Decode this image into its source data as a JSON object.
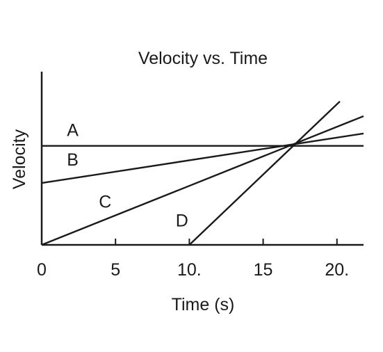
{
  "chart_data": {
    "type": "line",
    "title": "Velocity vs. Time",
    "xlabel": "Time (s)",
    "ylabel": "Velocity",
    "xlim": [
      0,
      21.8
    ],
    "ylim": [
      0,
      7
    ],
    "x_ticks": [
      {
        "value": 0,
        "label": "0"
      },
      {
        "value": 5,
        "label": "5"
      },
      {
        "value": 10,
        "label": "10."
      },
      {
        "value": 15,
        "label": "15"
      },
      {
        "value": 20,
        "label": "20."
      }
    ],
    "grid": false,
    "series": [
      {
        "name": "A",
        "x": [
          0,
          21.8
        ],
        "y": [
          4,
          4
        ],
        "label_at": [
          2.1,
          4.4
        ]
      },
      {
        "name": "B",
        "x": [
          0,
          21.8
        ],
        "y": [
          2.5,
          4.5
        ],
        "label_at": [
          2.1,
          3.2
        ]
      },
      {
        "name": "C",
        "x": [
          0,
          21.8
        ],
        "y": [
          0,
          5.2
        ],
        "label_at": [
          4.3,
          1.5
        ]
      },
      {
        "name": "D",
        "x": [
          10,
          20.2
        ],
        "y": [
          0,
          5.8
        ],
        "label_at": [
          9.5,
          0.75
        ]
      }
    ]
  }
}
